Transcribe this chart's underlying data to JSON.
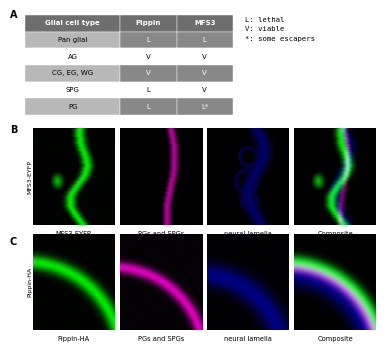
{
  "panel_A_label": "A",
  "panel_B_label": "B",
  "panel_C_label": "C",
  "table_header": [
    "Glial cell type",
    "Pippin",
    "MFS3"
  ],
  "table_rows": [
    [
      "Pan glial",
      "L",
      "L"
    ],
    [
      "AG",
      "V",
      "V"
    ],
    [
      "CG, EG, WG",
      "V",
      "V"
    ],
    [
      "SPG",
      "L",
      "V"
    ],
    [
      "PG",
      "L",
      "L*"
    ]
  ],
  "legend_text": "L: lethal\nV: viable\n*: some escapers",
  "row_dark_idx": [
    0,
    2,
    4
  ],
  "header_bg": "#6e6e6e",
  "dark_bg": "#888888",
  "light_bg": "#b8b8b8",
  "header_text": "#ffffff",
  "dark_cell_text": "#ffffff",
  "light_cell_text": "#000000",
  "B_labels": [
    "MFS3-EYFP",
    "PGs and SPGs",
    "neural lamella",
    "Composite"
  ],
  "C_labels": [
    "Pippin-HA",
    "PGs and SPGs",
    "neural lamella",
    "Composite"
  ],
  "B_row_label": "MFS3-EYFP",
  "C_row_label": "Pippin-HA"
}
